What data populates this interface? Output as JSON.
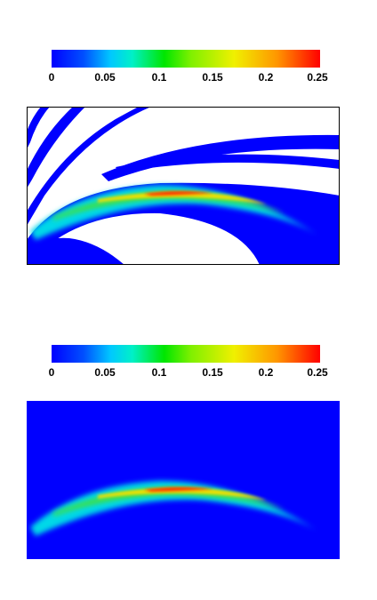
{
  "chart_data": [
    {
      "type": "heatmap",
      "title": "",
      "xlabel": "",
      "ylabel": "",
      "colorbar": {
        "ticks": [
          "0",
          "0.05",
          "0.1",
          "0.15",
          "0.2",
          "0.25"
        ],
        "range": [
          0,
          0.25
        ],
        "colormap": "jet"
      },
      "field": {
        "background": "white-with-blue-bands",
        "peak_value": 0.25,
        "plume_shape": "arc"
      }
    },
    {
      "type": "heatmap",
      "title": "",
      "xlabel": "",
      "ylabel": "",
      "colorbar": {
        "ticks": [
          "0",
          "0.05",
          "0.1",
          "0.15",
          "0.2",
          "0.25"
        ],
        "range": [
          0,
          0.25
        ],
        "colormap": "jet"
      },
      "field": {
        "background": "uniform-blue",
        "peak_value": 0.25,
        "plume_shape": "arc"
      }
    }
  ],
  "colors": {
    "zero": "#0000ff",
    "max": "#ff0000",
    "background": "#ffffff"
  }
}
